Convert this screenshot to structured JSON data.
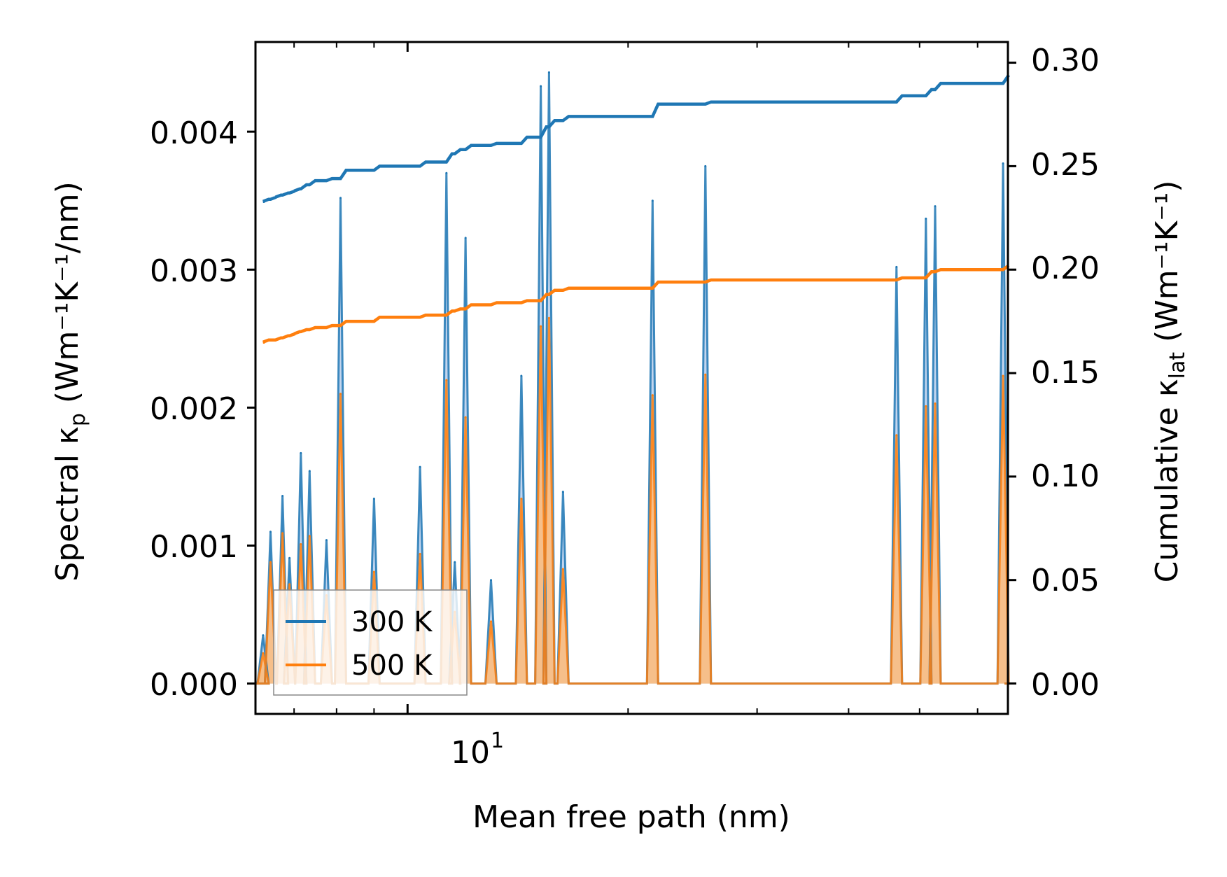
{
  "chart_data": {
    "type": "line",
    "xlabel": "Mean free path (nm)",
    "ylabel_left": "Spectral κ",
    "ylabel_left_sub": "p",
    "ylabel_left_units": "(Wm⁻¹K⁻¹/nm)",
    "ylabel_right": "Cumulative κ",
    "ylabel_right_sub": "lat",
    "ylabel_right_units": "(Wm⁻¹K⁻¹)",
    "x_scale": "log",
    "x_range": [
      6.2,
      66
    ],
    "x_tick_label": {
      "base": "10",
      "exp": "1"
    },
    "y_left_range": [
      -0.00022,
      0.00465
    ],
    "y_left_ticks": [
      "0.000",
      "0.001",
      "0.002",
      "0.003",
      "0.004"
    ],
    "y_right_range": [
      -0.0147,
      0.31
    ],
    "y_right_ticks": [
      "0.00",
      "0.05",
      "0.10",
      "0.15",
      "0.20",
      "0.25",
      "0.30"
    ],
    "legend": {
      "placement": "lower-left",
      "entries": [
        {
          "label": "300 K",
          "color": "#1f77b4"
        },
        {
          "label": "500 K",
          "color": "#ff7f0e"
        }
      ]
    },
    "colors": {
      "s300": "#1f77b4",
      "s500": "#ff7f0e",
      "fill300": "#aec7e8",
      "fill500": "#ffbb78"
    },
    "spectral_peaks": [
      {
        "x": 6.35,
        "y300": 0.00035,
        "y500": 0.00022
      },
      {
        "x": 6.5,
        "y300": 0.0011,
        "y500": 0.00088
      },
      {
        "x": 6.75,
        "y300": 0.00136,
        "y500": 0.00109
      },
      {
        "x": 6.9,
        "y300": 0.00091,
        "y500": 0.00072
      },
      {
        "x": 7.15,
        "y300": 0.00167,
        "y500": 0.00101
      },
      {
        "x": 7.35,
        "y300": 0.00154,
        "y500": 0.00107
      },
      {
        "x": 7.75,
        "y300": 0.00104,
        "y500": 0.00064
      },
      {
        "x": 8.1,
        "y300": 0.00352,
        "y500": 0.0021
      },
      {
        "x": 9.0,
        "y300": 0.00134,
        "y500": 0.00081
      },
      {
        "x": 10.4,
        "y300": 0.00157,
        "y500": 0.00094
      },
      {
        "x": 11.3,
        "y300": 0.0037,
        "y500": 0.0022
      },
      {
        "x": 11.6,
        "y300": 0.00088,
        "y500": 0.00052
      },
      {
        "x": 12.0,
        "y300": 0.00323,
        "y500": 0.00193
      },
      {
        "x": 13.0,
        "y300": 0.00075,
        "y500": 0.00045
      },
      {
        "x": 14.3,
        "y300": 0.00223,
        "y500": 0.00134
      },
      {
        "x": 15.2,
        "y300": 0.00433,
        "y500": 0.00259
      },
      {
        "x": 15.6,
        "y300": 0.00443,
        "y500": 0.00265
      },
      {
        "x": 16.3,
        "y300": 0.00139,
        "y500": 0.00083
      },
      {
        "x": 21.6,
        "y300": 0.0035,
        "y500": 0.00209
      },
      {
        "x": 25.5,
        "y300": 0.00375,
        "y500": 0.00224
      },
      {
        "x": 46.5,
        "y300": 0.00302,
        "y500": 0.0018
      },
      {
        "x": 51.0,
        "y300": 0.00337,
        "y500": 0.00201
      },
      {
        "x": 52.5,
        "y300": 0.00346,
        "y500": 0.00203
      },
      {
        "x": 65.0,
        "y300": 0.00377,
        "y500": 0.00223
      }
    ],
    "cumulative_300": {
      "x": [
        6.2,
        6.35,
        6.5,
        6.6,
        6.75,
        6.9,
        7.0,
        7.15,
        7.35,
        7.75,
        8.1,
        8.4,
        9.0,
        10.4,
        11.3,
        11.6,
        12.0,
        13.0,
        14.3,
        15.2,
        15.6,
        16.3,
        21.6,
        25.5,
        46.5,
        51.0,
        52.5,
        65.0
      ],
      "y": [
        0.233,
        0.234,
        0.235,
        0.236,
        0.237,
        0.238,
        0.239,
        0.241,
        0.243,
        0.244,
        0.248,
        0.248,
        0.25,
        0.252,
        0.256,
        0.258,
        0.26,
        0.261,
        0.264,
        0.269,
        0.272,
        0.274,
        0.28,
        0.281,
        0.284,
        0.287,
        0.29,
        0.294
      ]
    },
    "cumulative_500": {
      "x": [
        6.2,
        6.35,
        6.5,
        6.6,
        6.75,
        6.9,
        7.0,
        7.15,
        7.35,
        7.75,
        8.1,
        8.4,
        9.0,
        10.4,
        11.3,
        11.6,
        12.0,
        13.0,
        14.3,
        15.2,
        15.6,
        16.3,
        21.6,
        25.5,
        46.5,
        51.0,
        52.5,
        65.0
      ],
      "y": [
        0.165,
        0.166,
        0.166,
        0.167,
        0.168,
        0.169,
        0.17,
        0.171,
        0.172,
        0.173,
        0.175,
        0.175,
        0.177,
        0.178,
        0.18,
        0.181,
        0.183,
        0.184,
        0.185,
        0.188,
        0.19,
        0.191,
        0.194,
        0.195,
        0.196,
        0.199,
        0.2,
        0.202
      ]
    }
  }
}
